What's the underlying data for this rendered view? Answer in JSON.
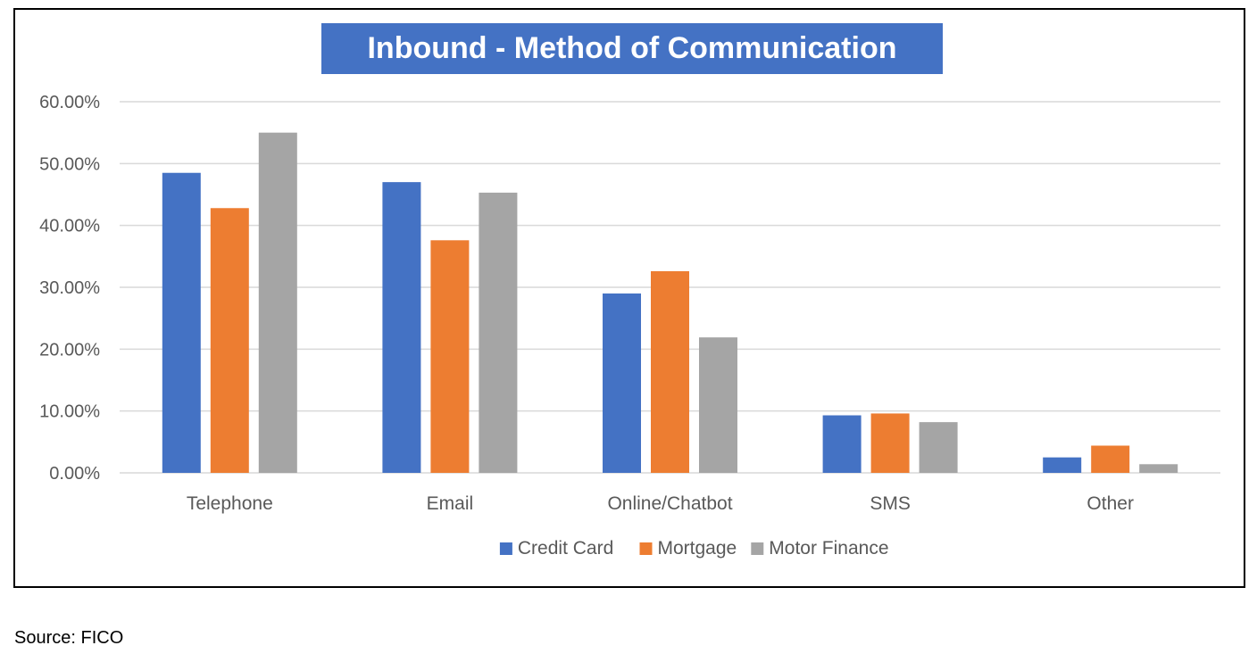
{
  "chart_data": {
    "type": "bar",
    "title": "Inbound - Method of Communication",
    "categories": [
      "Telephone",
      "Email",
      "Online/Chatbot",
      "SMS",
      "Other"
    ],
    "series": [
      {
        "name": "Credit Card",
        "color": "#4472c4",
        "values": [
          48.5,
          47.0,
          29.0,
          9.3,
          2.5
        ]
      },
      {
        "name": "Mortgage",
        "color": "#ed7d31",
        "values": [
          42.8,
          37.6,
          32.6,
          9.6,
          4.4
        ]
      },
      {
        "name": "Motor Finance",
        "color": "#a5a5a5",
        "values": [
          55.0,
          45.3,
          21.9,
          8.2,
          1.4
        ]
      }
    ],
    "ylim": [
      0,
      60
    ],
    "yticks": [
      "0.00%",
      "10.00%",
      "20.00%",
      "30.00%",
      "40.00%",
      "50.00%",
      "60.00%"
    ],
    "grid": true,
    "legend_position": "bottom"
  },
  "source": "Source: FICO"
}
